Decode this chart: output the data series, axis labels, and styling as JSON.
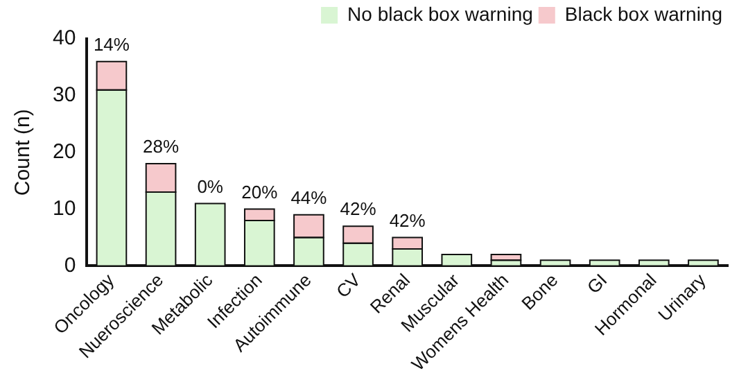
{
  "chart_data": {
    "type": "bar",
    "stacked": true,
    "ylabel": "Count (n)",
    "categories": [
      "Oncology",
      "Nueroscience",
      "Metabolic",
      "Infection",
      "Autoimmune",
      "CV",
      "Renal",
      "Muscular",
      "Womens Health",
      "Bone",
      "GI",
      "Hormonal",
      "Urinary"
    ],
    "series": [
      {
        "name": "No black box warning",
        "color": "#d9f5d3",
        "values": [
          31,
          13,
          11,
          8,
          5,
          4,
          3,
          2,
          1,
          1,
          1,
          1,
          1
        ]
      },
      {
        "name": "Black box warning",
        "color": "#f6c9cc",
        "values": [
          5,
          5,
          0,
          2,
          4,
          3,
          2,
          0,
          1,
          0,
          0,
          0,
          0
        ]
      }
    ],
    "ylim": [
      0,
      40
    ],
    "yticks": [
      0,
      10,
      20,
      30,
      40
    ],
    "grid": false,
    "legend": "top right",
    "annotations": [
      {
        "text": "14%",
        "x": "Oncology",
        "y": 36
      },
      {
        "text": "28%",
        "x": "Nueroscience",
        "y": 18
      },
      {
        "text": "0%",
        "x": "Metabolic",
        "y": 11
      },
      {
        "text": "20%",
        "x": "Infection",
        "y": 10
      },
      {
        "text": "44%",
        "x": "Autoimmune",
        "y": 9
      },
      {
        "text": "42%",
        "x": "CV",
        "y": 7
      },
      {
        "text": "42%",
        "x": "Renal",
        "y": 5
      }
    ]
  }
}
